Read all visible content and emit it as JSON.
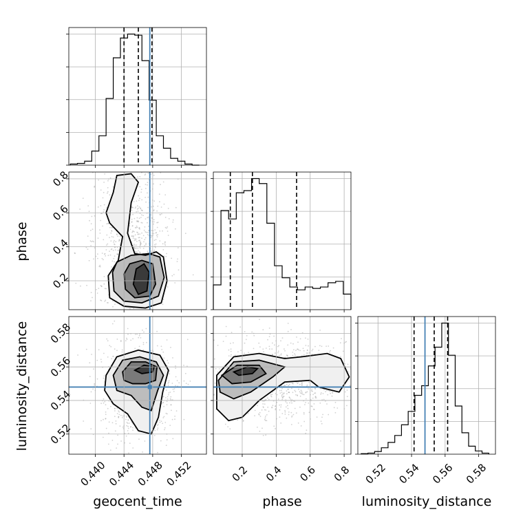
{
  "chart_data": {
    "type": "corner",
    "parameters": [
      "geocent_time",
      "phase",
      "luminosity_distance"
    ],
    "axes": {
      "geocent_time": {
        "ticks": [
          0.44,
          0.444,
          0.448,
          0.452
        ],
        "tick_labels": [
          "0.440",
          "0.444",
          "0.448",
          "0.452"
        ],
        "range": [
          0.4363,
          0.4555
        ]
      },
      "phase": {
        "ticks": [
          0.2,
          0.4,
          0.6,
          0.8
        ],
        "tick_labels": [
          "0.2",
          "0.4",
          "0.6",
          "0.8"
        ],
        "range": [
          0.03,
          0.84
        ]
      },
      "luminosity_distance": {
        "ticks": [
          0.52,
          0.54,
          0.56,
          0.58
        ],
        "tick_labels": [
          "0.52",
          "0.54",
          "0.56",
          "0.58"
        ],
        "range": [
          0.508,
          0.59
        ]
      }
    },
    "truths": {
      "geocent_time": 0.4476,
      "luminosity_distance": 0.548
    },
    "quantiles": {
      "geocent_time": [
        0.444,
        0.446,
        0.4479
      ],
      "phase": [
        0.13,
        0.26,
        0.52
      ],
      "luminosity_distance": [
        0.5415,
        0.5535,
        0.5615
      ]
    },
    "histograms": {
      "geocent_time": {
        "edges": [
          0.4365,
          0.4375,
          0.4385,
          0.4395,
          0.4405,
          0.4415,
          0.4425,
          0.4435,
          0.4445,
          0.4455,
          0.4465,
          0.4475,
          0.4485,
          0.4495,
          0.4505,
          0.4515,
          0.4525,
          0.4535,
          0.4545
        ],
        "counts": [
          2,
          3,
          7,
          25,
          52,
          118,
          190,
          225,
          232,
          230,
          185,
          115,
          52,
          30,
          12,
          7,
          2,
          0
        ]
      },
      "phase": {
        "edges": [
          0.03,
          0.075,
          0.12,
          0.165,
          0.21,
          0.255,
          0.3,
          0.345,
          0.39,
          0.435,
          0.48,
          0.525,
          0.57,
          0.615,
          0.66,
          0.705,
          0.75,
          0.795,
          0.84
        ],
        "counts": [
          35,
          140,
          128,
          165,
          168,
          185,
          178,
          122,
          62,
          45,
          32,
          28,
          32,
          30,
          32,
          38,
          40,
          22
        ]
      },
      "luminosity_distance": {
        "edges": [
          0.51,
          0.514,
          0.518,
          0.522,
          0.526,
          0.53,
          0.534,
          0.538,
          0.542,
          0.546,
          0.55,
          0.554,
          0.558,
          0.562,
          0.566,
          0.57,
          0.574,
          0.578,
          0.582,
          0.586
        ],
        "counts": [
          1,
          2,
          5,
          12,
          22,
          35,
          55,
          80,
          110,
          128,
          165,
          200,
          245,
          185,
          90,
          40,
          15,
          6,
          2
        ]
      }
    },
    "contours_2d": {
      "phase_vs_geocent_time": [
        [
          [
            0.4415,
            0.6
          ],
          [
            0.4425,
            0.72
          ],
          [
            0.443,
            0.82
          ],
          [
            0.445,
            0.83
          ],
          [
            0.446,
            0.78
          ],
          [
            0.445,
            0.66
          ],
          [
            0.4445,
            0.48
          ],
          [
            0.4455,
            0.36
          ],
          [
            0.447,
            0.35
          ],
          [
            0.4485,
            0.37
          ],
          [
            0.4495,
            0.34
          ],
          [
            0.45,
            0.2
          ],
          [
            0.4492,
            0.07
          ],
          [
            0.447,
            0.04
          ],
          [
            0.444,
            0.05
          ],
          [
            0.442,
            0.1
          ],
          [
            0.4418,
            0.23
          ],
          [
            0.4432,
            0.32
          ],
          [
            0.4438,
            0.46
          ],
          [
            0.442,
            0.54
          ]
        ],
        [
          [
            0.443,
            0.31
          ],
          [
            0.445,
            0.35
          ],
          [
            0.4475,
            0.36
          ],
          [
            0.449,
            0.34
          ],
          [
            0.4496,
            0.22
          ],
          [
            0.4488,
            0.11
          ],
          [
            0.4465,
            0.07
          ],
          [
            0.444,
            0.08
          ],
          [
            0.4426,
            0.14
          ],
          [
            0.4424,
            0.25
          ]
        ],
        [
          [
            0.4448,
            0.3
          ],
          [
            0.4465,
            0.32
          ],
          [
            0.448,
            0.3
          ],
          [
            0.4484,
            0.18
          ],
          [
            0.4476,
            0.11
          ],
          [
            0.4455,
            0.1
          ],
          [
            0.4442,
            0.15
          ],
          [
            0.444,
            0.24
          ]
        ],
        [
          [
            0.4457,
            0.27
          ],
          [
            0.4468,
            0.3
          ],
          [
            0.4475,
            0.25
          ],
          [
            0.4472,
            0.14
          ],
          [
            0.446,
            0.12
          ],
          [
            0.4453,
            0.18
          ]
        ]
      ],
      "luminosity_distance_vs_geocent_time": [
        [
          [
            0.4415,
            0.555
          ],
          [
            0.443,
            0.566
          ],
          [
            0.446,
            0.57
          ],
          [
            0.449,
            0.567
          ],
          [
            0.4502,
            0.558
          ],
          [
            0.4494,
            0.545
          ],
          [
            0.4488,
            0.53
          ],
          [
            0.4478,
            0.52
          ],
          [
            0.446,
            0.522
          ],
          [
            0.4445,
            0.532
          ],
          [
            0.4425,
            0.538
          ],
          [
            0.4413,
            0.546
          ]
        ],
        [
          [
            0.4425,
            0.555
          ],
          [
            0.4438,
            0.564
          ],
          [
            0.4462,
            0.566
          ],
          [
            0.4485,
            0.563
          ],
          [
            0.4495,
            0.555
          ],
          [
            0.4487,
            0.546
          ],
          [
            0.4478,
            0.534
          ],
          [
            0.4465,
            0.536
          ],
          [
            0.445,
            0.543
          ],
          [
            0.443,
            0.546
          ]
        ],
        [
          [
            0.4438,
            0.557
          ],
          [
            0.445,
            0.563
          ],
          [
            0.447,
            0.563
          ],
          [
            0.4486,
            0.56
          ],
          [
            0.4484,
            0.552
          ],
          [
            0.447,
            0.55
          ],
          [
            0.4452,
            0.55
          ],
          [
            0.444,
            0.552
          ]
        ],
        [
          [
            0.4455,
            0.558
          ],
          [
            0.4468,
            0.561
          ],
          [
            0.4482,
            0.56
          ],
          [
            0.448,
            0.557
          ],
          [
            0.4465,
            0.556
          ]
        ]
      ],
      "luminosity_distance_vs_phase": [
        [
          [
            0.05,
            0.555
          ],
          [
            0.15,
            0.566
          ],
          [
            0.3,
            0.568
          ],
          [
            0.45,
            0.565
          ],
          [
            0.55,
            0.566
          ],
          [
            0.7,
            0.568
          ],
          [
            0.78,
            0.565
          ],
          [
            0.83,
            0.554
          ],
          [
            0.77,
            0.545
          ],
          [
            0.65,
            0.548
          ],
          [
            0.6,
            0.552
          ],
          [
            0.45,
            0.551
          ],
          [
            0.3,
            0.54
          ],
          [
            0.2,
            0.53
          ],
          [
            0.12,
            0.528
          ],
          [
            0.05,
            0.535
          ]
        ],
        [
          [
            0.06,
            0.552
          ],
          [
            0.15,
            0.563
          ],
          [
            0.3,
            0.564
          ],
          [
            0.45,
            0.56
          ],
          [
            0.38,
            0.554
          ],
          [
            0.25,
            0.545
          ],
          [
            0.15,
            0.541
          ],
          [
            0.07,
            0.545
          ]
        ],
        [
          [
            0.08,
            0.555
          ],
          [
            0.17,
            0.561
          ],
          [
            0.3,
            0.561
          ],
          [
            0.34,
            0.556
          ],
          [
            0.25,
            0.551
          ],
          [
            0.14,
            0.55
          ]
        ],
        [
          [
            0.15,
            0.557
          ],
          [
            0.23,
            0.56
          ],
          [
            0.29,
            0.559
          ],
          [
            0.26,
            0.556
          ],
          [
            0.18,
            0.555
          ]
        ]
      ]
    }
  }
}
